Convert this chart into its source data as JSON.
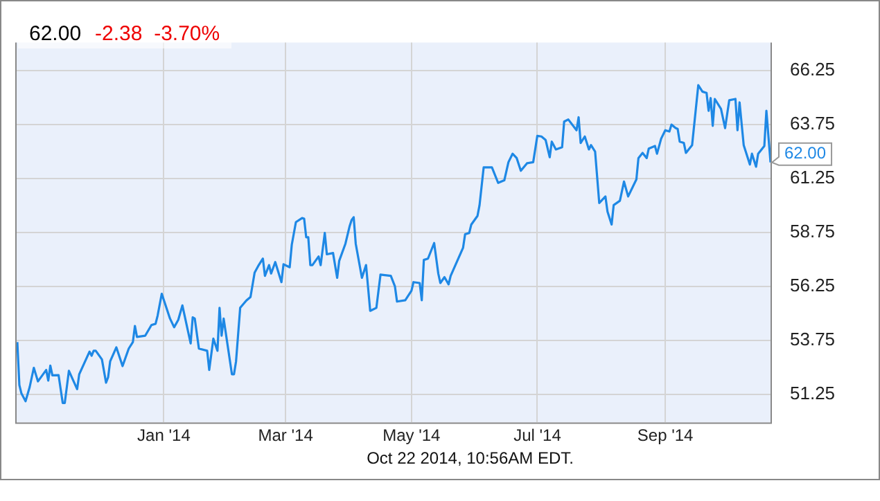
{
  "chart_data": {
    "type": "line",
    "title": "62.00",
    "subtitle": "-2.38  -3.70%",
    "x": [
      "2013-10-22",
      "2013-10-23",
      "2013-10-24",
      "2013-10-26",
      "2013-10-28",
      "2013-10-30",
      "2013-11-01",
      "2013-11-05",
      "2013-11-06",
      "2013-11-07",
      "2013-11-08",
      "2013-11-11",
      "2013-11-13",
      "2013-11-14",
      "2013-11-16",
      "2013-11-20",
      "2013-11-21",
      "2013-11-26",
      "2013-11-27",
      "2013-11-28",
      "2013-11-29",
      "2013-12-02",
      "2013-12-04",
      "2013-12-05",
      "2013-12-06",
      "2013-12-09",
      "2013-12-12",
      "2013-12-15",
      "2013-12-17",
      "2013-12-18",
      "2013-12-19",
      "2013-12-23",
      "2013-12-26",
      "2013-12-28",
      "2013-12-29",
      "2013-12-31",
      "2014-01-04",
      "2014-01-06",
      "2014-01-08",
      "2014-01-10",
      "2014-01-14",
      "2014-01-15",
      "2014-01-16",
      "2014-01-18",
      "2014-01-22",
      "2014-01-23",
      "2014-01-25",
      "2014-01-27",
      "2014-01-28",
      "2014-01-29",
      "2014-01-30",
      "2014-02-03",
      "2014-02-04",
      "2014-02-05",
      "2014-02-07",
      "2014-02-10",
      "2014-02-12",
      "2014-02-14",
      "2014-02-16",
      "2014-02-18",
      "2014-02-19",
      "2014-02-21",
      "2014-02-22",
      "2014-02-24",
      "2014-02-27",
      "2014-02-28",
      "2014-03-03",
      "2014-03-04",
      "2014-03-06",
      "2014-03-09",
      "2014-03-10",
      "2014-03-11",
      "2014-03-12",
      "2014-03-13",
      "2014-03-14",
      "2014-03-17",
      "2014-03-18",
      "2014-03-20",
      "2014-03-21",
      "2014-03-24",
      "2014-03-26",
      "2014-03-27",
      "2014-03-30",
      "2014-04-01",
      "2014-04-02",
      "2014-04-03",
      "2014-04-04",
      "2014-04-07",
      "2014-04-09",
      "2014-04-11",
      "2014-04-14",
      "2014-04-16",
      "2014-04-21",
      "2014-04-23",
      "2014-04-24",
      "2014-04-28",
      "2014-05-01",
      "2014-05-02",
      "2014-05-05",
      "2014-05-06",
      "2014-05-07",
      "2014-05-09",
      "2014-05-12",
      "2014-05-14",
      "2014-05-15",
      "2014-05-17",
      "2014-05-19",
      "2014-05-20",
      "2014-05-26",
      "2014-05-27",
      "2014-05-29",
      "2014-05-30",
      "2014-06-02",
      "2014-06-03",
      "2014-06-05",
      "2014-06-09",
      "2014-06-12",
      "2014-06-15",
      "2014-06-17",
      "2014-06-19",
      "2014-06-21",
      "2014-06-23",
      "2014-06-26",
      "2014-06-29",
      "2014-07-01",
      "2014-07-03",
      "2014-07-05",
      "2014-07-07",
      "2014-07-08",
      "2014-07-10",
      "2014-07-13",
      "2014-07-14",
      "2014-07-16",
      "2014-07-20",
      "2014-07-21",
      "2014-07-22",
      "2014-07-24",
      "2014-07-26",
      "2014-07-27",
      "2014-07-29",
      "2014-07-31",
      "2014-08-03",
      "2014-08-04",
      "2014-08-06",
      "2014-08-07",
      "2014-08-10",
      "2014-08-12",
      "2014-08-14",
      "2014-08-18",
      "2014-08-19",
      "2014-08-21",
      "2014-08-23",
      "2014-08-24",
      "2014-08-27",
      "2014-08-28",
      "2014-08-30",
      "2014-09-01",
      "2014-09-03",
      "2014-09-04",
      "2014-09-06",
      "2014-09-07",
      "2014-09-08",
      "2014-09-10",
      "2014-09-11",
      "2014-09-14",
      "2014-09-17",
      "2014-09-19",
      "2014-09-21",
      "2014-09-22",
      "2014-09-23",
      "2014-09-24",
      "2014-09-25",
      "2014-09-28",
      "2014-09-30",
      "2014-10-02",
      "2014-10-05",
      "2014-10-06",
      "2014-10-07",
      "2014-10-09",
      "2014-10-12",
      "2014-10-13",
      "2014-10-15",
      "2014-10-16",
      "2014-10-19",
      "2014-10-20",
      "2014-10-22"
    ],
    "series": [
      {
        "color": "#1e88e5",
        "values": [
          53.67,
          51.68,
          51.29,
          50.93,
          51.59,
          52.48,
          51.85,
          52.38,
          51.89,
          52.58,
          52.13,
          52.14,
          50.85,
          50.85,
          52.34,
          51.49,
          52.18,
          53.23,
          53.04,
          53.27,
          53.27,
          52.87,
          51.79,
          52.04,
          52.78,
          53.43,
          52.56,
          53.37,
          53.67,
          54.42,
          53.91,
          53.97,
          54.46,
          54.52,
          54.9,
          55.91,
          54.76,
          54.36,
          54.7,
          55.37,
          53.61,
          54.82,
          54.76,
          53.37,
          53.27,
          52.38,
          53.83,
          53.27,
          55.26,
          53.97,
          54.76,
          52.18,
          52.18,
          52.78,
          55.26,
          55.6,
          55.76,
          56.89,
          57.24,
          57.54,
          56.74,
          57.24,
          56.85,
          57.38,
          56.45,
          57.28,
          57.14,
          58.18,
          59.23,
          59.42,
          59.39,
          58.53,
          58.53,
          57.24,
          57.24,
          57.64,
          57.24,
          58.73,
          57.74,
          57.8,
          56.65,
          57.44,
          58.23,
          59.03,
          59.33,
          59.46,
          58.23,
          56.65,
          57.24,
          55.12,
          55.26,
          56.8,
          56.74,
          56.25,
          55.55,
          55.61,
          56.05,
          56.45,
          56.41,
          55.61,
          57.48,
          57.54,
          58.26,
          56.85,
          56.41,
          56.68,
          56.35,
          56.74,
          58.04,
          58.67,
          58.73,
          59.12,
          59.52,
          60.02,
          61.77,
          61.77,
          61.05,
          61.17,
          62.01,
          62.4,
          62.2,
          61.61,
          61.96,
          62.01,
          63.23,
          63.2,
          63.04,
          62.24,
          62.96,
          62.6,
          62.7,
          63.89,
          63.99,
          63.49,
          64.09,
          62.9,
          63.2,
          62.6,
          62.8,
          62.5,
          60.12,
          60.42,
          59.72,
          59.12,
          60.02,
          60.22,
          61.11,
          60.42,
          61.21,
          62.2,
          62.44,
          62.2,
          62.64,
          62.76,
          62.4,
          63.1,
          63.49,
          63.43,
          63.75,
          63.59,
          63.55,
          62.96,
          62.9,
          62.44,
          62.8,
          65.58,
          65.28,
          65.22,
          64.39,
          64.98,
          63.69,
          64.94,
          64.48,
          63.59,
          64.88,
          64.94,
          63.49,
          64.78,
          62.8,
          61.9,
          62.4,
          61.8,
          62.4,
          62.76,
          64.39,
          62.0
        ]
      }
    ],
    "xlim": [
      "2013-10-21",
      "2014-10-22"
    ],
    "xticks": [
      {
        "value": "2014-01-01",
        "label": "Jan '14"
      },
      {
        "value": "2014-03-01",
        "label": "Mar '14"
      },
      {
        "value": "2014-05-01",
        "label": "May '14"
      },
      {
        "value": "2014-07-01",
        "label": "Jul '14"
      },
      {
        "value": "2014-09-01",
        "label": "Sep '14"
      }
    ],
    "ylim": [
      49.95,
      67.55
    ],
    "yticks": [
      51.25,
      53.75,
      56.25,
      58.75,
      61.25,
      63.75,
      66.25
    ],
    "grid": true,
    "legend": false,
    "marker": "none",
    "line_style": "solid",
    "annotations": [
      {
        "text": "62.00",
        "x": "2014-10-22",
        "y": 62.0
      },
      "Oct 22 2014, 10:56AM EDT."
    ]
  }
}
